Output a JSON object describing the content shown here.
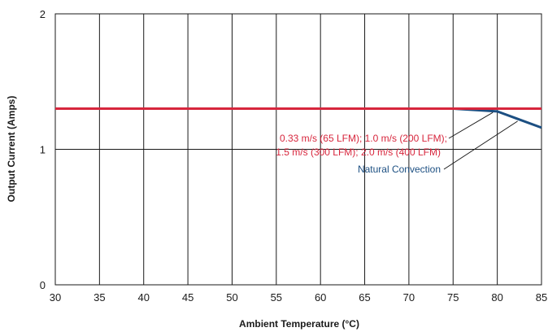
{
  "chart_data": {
    "type": "line",
    "xlabel": "Ambient Temperature (°C)",
    "ylabel": "Output Current (Amps)",
    "xlim": [
      30,
      85
    ],
    "ylim": [
      0,
      2
    ],
    "x_ticks": [
      "30",
      "35",
      "40",
      "45",
      "50",
      "55",
      "60",
      "65",
      "70",
      "75",
      "80",
      "85"
    ],
    "y_ticks": [
      "0",
      "1",
      "2"
    ],
    "grid": true,
    "series": [
      {
        "name": "0.33 m/s (65 LFM); 1.0 m/s (200 LFM); 1.5 m/s (300 LFM); 2.0 m/s (400 LFM)",
        "color": "#d7263d",
        "points": [
          [
            30,
            1.3
          ],
          [
            85,
            1.3
          ]
        ]
      },
      {
        "name": "Natural Convection",
        "color": "#1c4f82",
        "points": [
          [
            30,
            1.3
          ],
          [
            75,
            1.3
          ],
          [
            80,
            1.28
          ],
          [
            85,
            1.16
          ]
        ]
      }
    ],
    "annotations": {
      "red_line1": "0.33 m/s (65 LFM); 1.0 m/s (200 LFM);",
      "red_line2": "1.5 m/s (300 LFM); 2.0 m/s (400 LFM)",
      "blue_line": "Natural Convection"
    }
  }
}
